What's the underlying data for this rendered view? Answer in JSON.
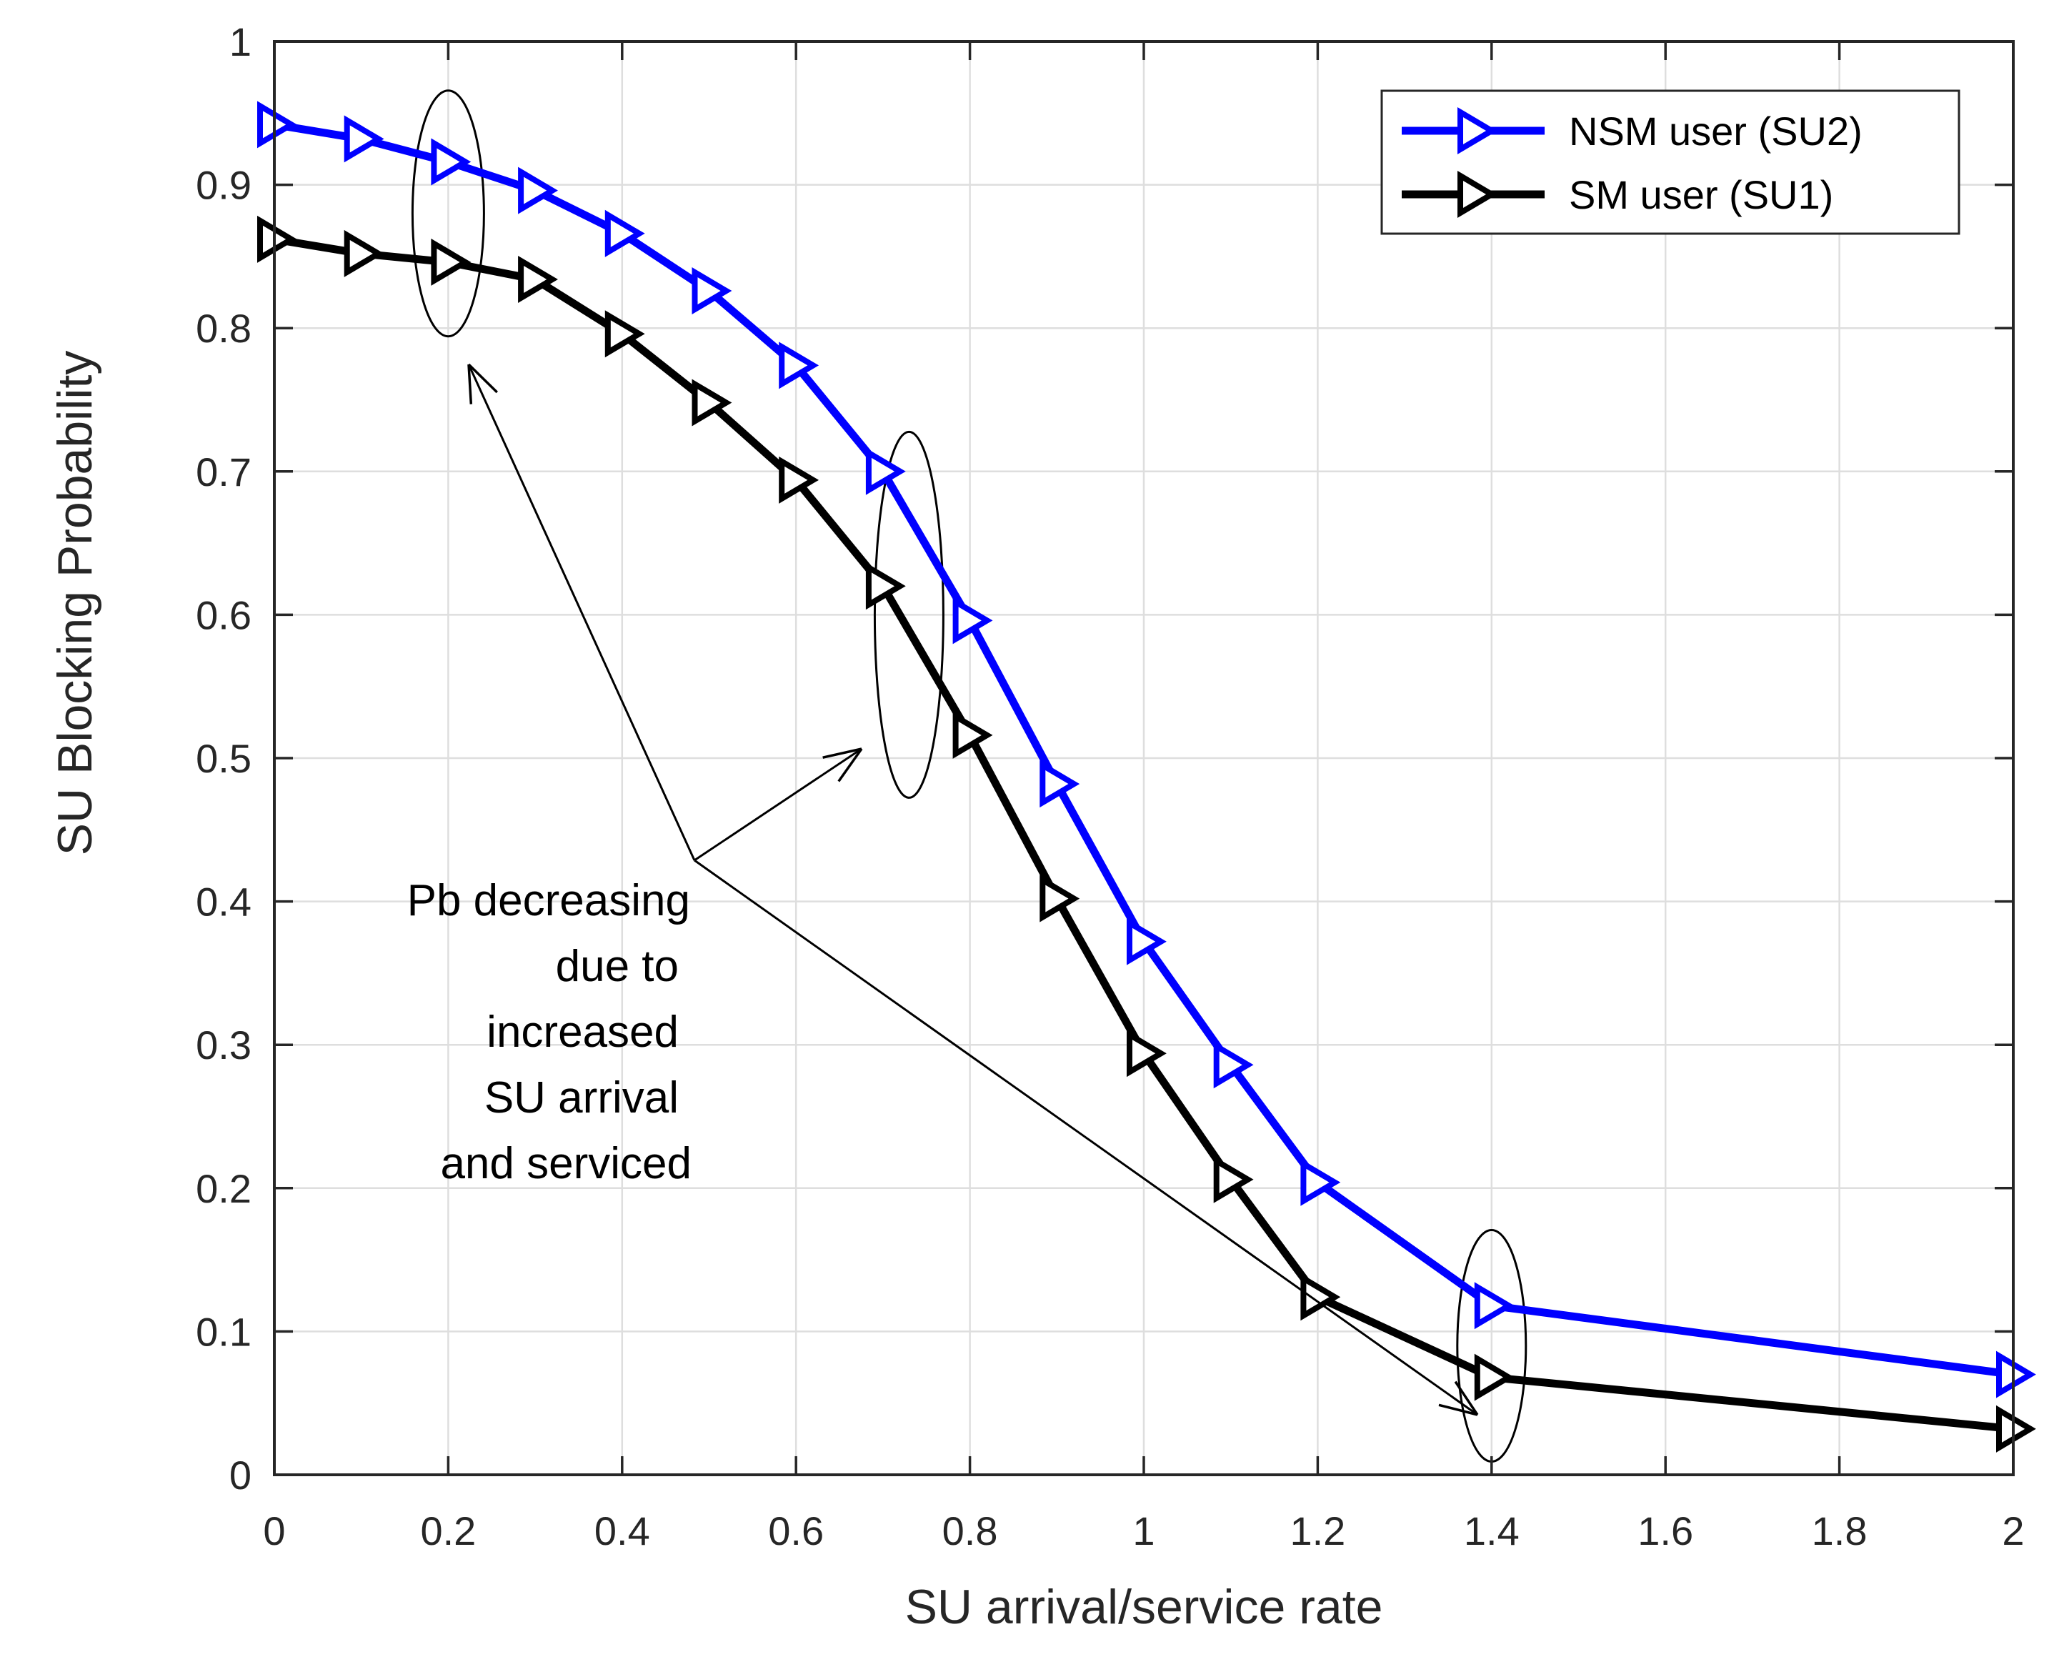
{
  "chart_data": {
    "type": "line",
    "title": "",
    "xlabel": "SU arrival/service rate",
    "ylabel": "SU Blocking Probability",
    "xlim": [
      0,
      2
    ],
    "ylim": [
      0,
      1
    ],
    "xticks": [
      0,
      0.2,
      0.4,
      0.6,
      0.8,
      1,
      1.2,
      1.4,
      1.6,
      1.8,
      2
    ],
    "xtick_labels": [
      "0",
      "0.2",
      "0.4",
      "0.6",
      "0.8",
      "1",
      "1.2",
      "1.4",
      "1.6",
      "1.8",
      "2"
    ],
    "yticks": [
      0,
      0.1,
      0.2,
      0.3,
      0.4,
      0.5,
      0.6,
      0.7,
      0.8,
      0.9,
      1
    ],
    "ytick_labels": [
      "0",
      "0.1",
      "0.2",
      "0.3",
      "0.4",
      "0.5",
      "0.6",
      "0.7",
      "0.8",
      "0.9",
      "1"
    ],
    "grid": true,
    "legend_position": "top-right",
    "series": [
      {
        "name": "NSM user (SU2)",
        "color": "#0000ff",
        "marker": "triangle-right",
        "x": [
          0,
          0.1,
          0.2,
          0.3,
          0.4,
          0.5,
          0.6,
          0.7,
          0.8,
          0.9,
          1.0,
          1.1,
          1.2,
          1.4,
          2.0
        ],
        "y": [
          0.942,
          0.932,
          0.916,
          0.896,
          0.866,
          0.826,
          0.774,
          0.7,
          0.596,
          0.482,
          0.372,
          0.286,
          0.204,
          0.118,
          0.07
        ]
      },
      {
        "name": "SM user (SU1)",
        "color": "#000000",
        "marker": "triangle-right",
        "x": [
          0,
          0.1,
          0.2,
          0.3,
          0.4,
          0.5,
          0.6,
          0.7,
          0.8,
          0.9,
          1.0,
          1.1,
          1.2,
          1.4,
          2.0
        ],
        "y": [
          0.862,
          0.852,
          0.846,
          0.834,
          0.796,
          0.748,
          0.694,
          0.62,
          0.516,
          0.402,
          0.294,
          0.206,
          0.124,
          0.068,
          0.032
        ]
      }
    ],
    "annotations": [
      {
        "text_lines": [
          "Pb decreasing",
          "due to",
          "increased",
          "SU arrival",
          "and serviced"
        ]
      }
    ]
  }
}
